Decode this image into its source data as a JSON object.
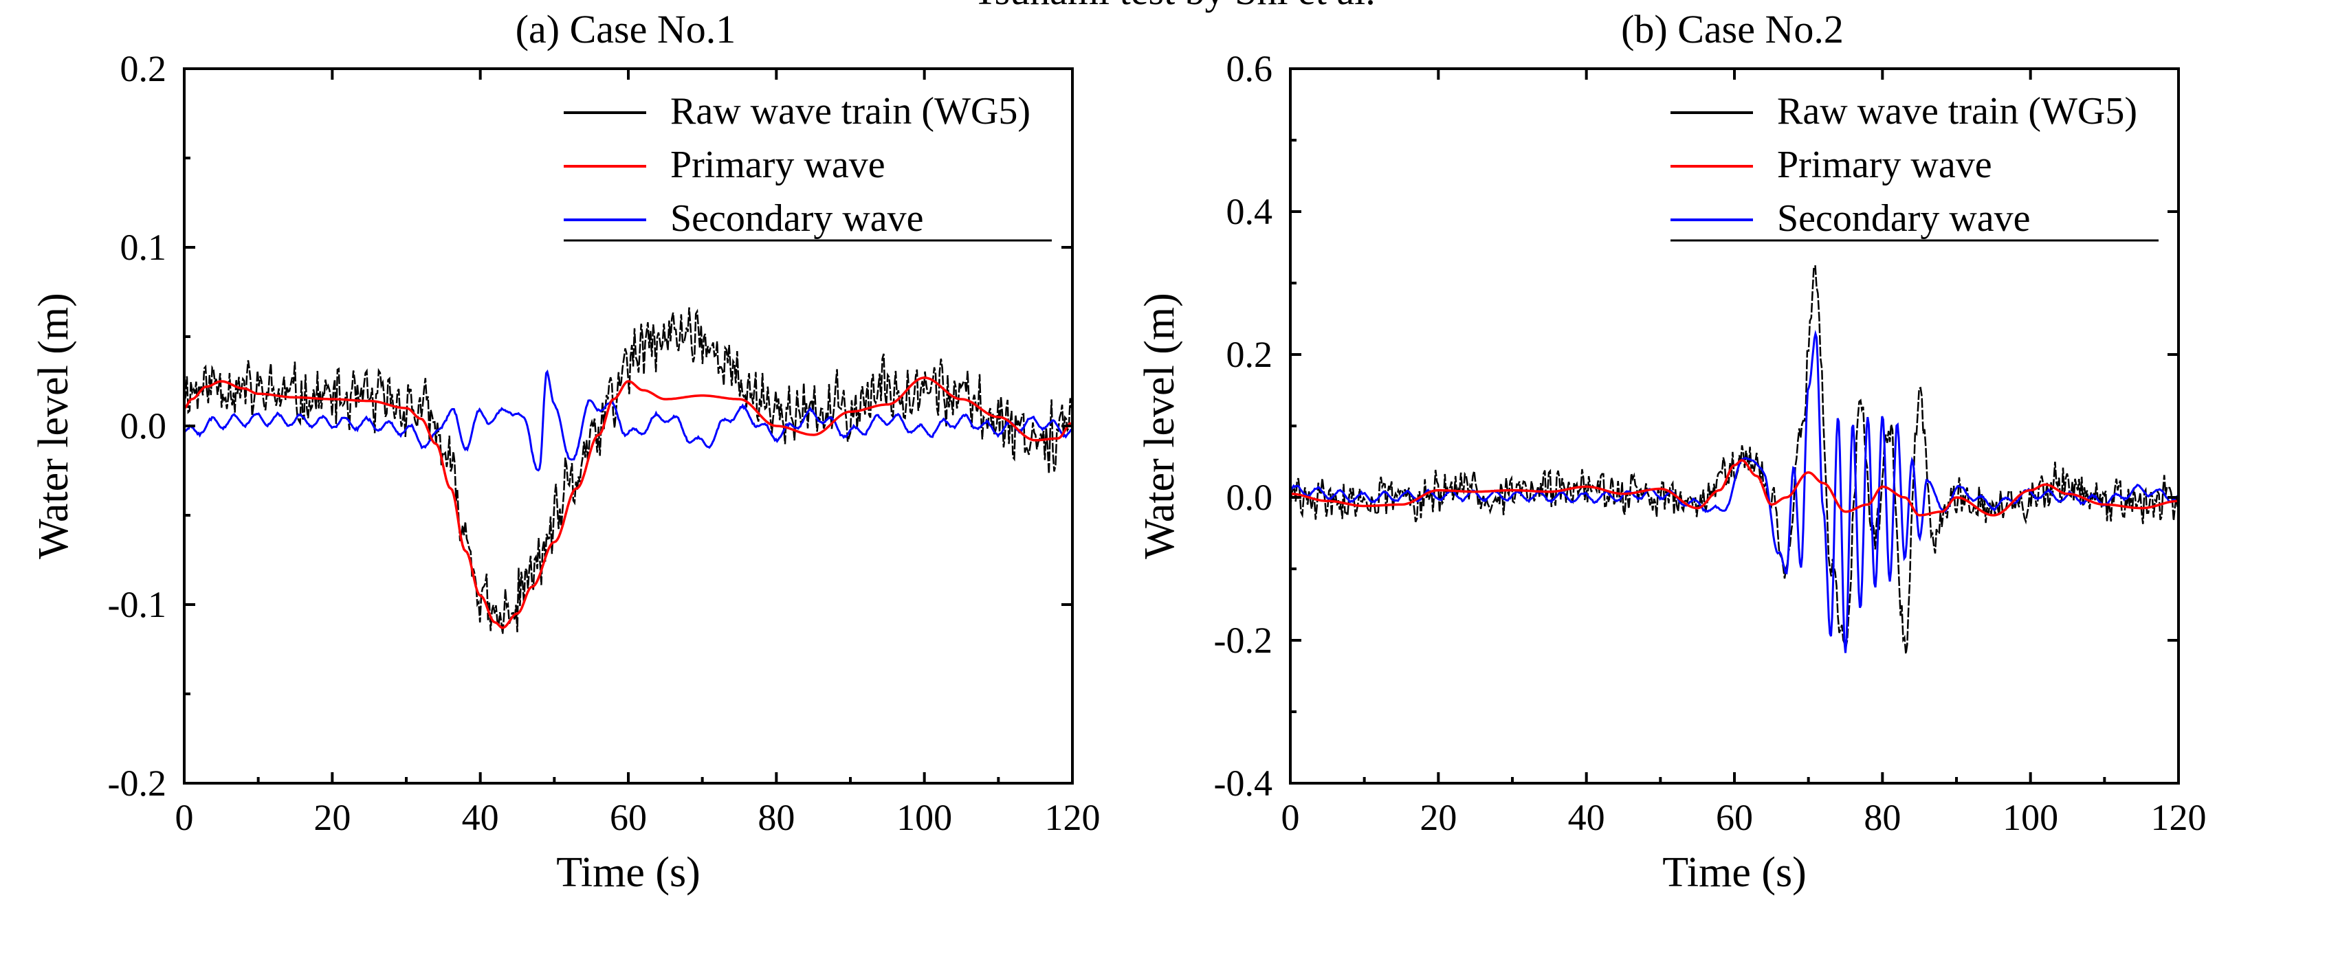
{
  "figure": {
    "top_label": "Tsunami test by Shi et al."
  },
  "chart_data": [
    {
      "type": "line",
      "title": "(a) Case No.1",
      "xlabel": "Time (s)",
      "ylabel": "Water level (m)",
      "xlim": [
        0,
        120
      ],
      "ylim": [
        -0.2,
        0.2
      ],
      "xticks": [
        0,
        20,
        40,
        60,
        80,
        100,
        120
      ],
      "yticks": [
        -0.2,
        -0.1,
        0.0,
        0.1,
        0.2
      ],
      "xtick_labels": [
        "0",
        "20",
        "40",
        "60",
        "80",
        "100",
        "120"
      ],
      "ytick_labels": [
        "-0.2",
        "-0.1",
        "0.0",
        "0.1",
        "0.2"
      ],
      "legend_position": "top-right",
      "series": [
        {
          "name": "Raw wave train (WG5)",
          "color": "#000000",
          "style": "noisy",
          "x": [
            0,
            5,
            10,
            15,
            20,
            25,
            30,
            33,
            35,
            38,
            40,
            42,
            44,
            46,
            48,
            50,
            52,
            55,
            58,
            60,
            63,
            66,
            69,
            72,
            75,
            78,
            80,
            85,
            90,
            95,
            100,
            105,
            110,
            115,
            120
          ],
          "values": [
            0.02,
            0.025,
            0.018,
            0.016,
            0.015,
            0.014,
            0.012,
            0.005,
            -0.015,
            -0.06,
            -0.095,
            -0.11,
            -0.105,
            -0.09,
            -0.075,
            -0.055,
            -0.035,
            -0.01,
            0.015,
            0.035,
            0.045,
            0.05,
            0.055,
            0.04,
            0.025,
            0.015,
            0.008,
            0.006,
            0.01,
            0.02,
            0.025,
            0.015,
            0.005,
            -0.005,
            0.0
          ],
          "noise_amplitude": 0.018
        },
        {
          "name": "Primary wave",
          "color": "#ff0000",
          "style": "smooth",
          "x": [
            0,
            1,
            3,
            5,
            8,
            10,
            15,
            20,
            25,
            30,
            32,
            34,
            36,
            38,
            40,
            42,
            43,
            45,
            47,
            50,
            53,
            56,
            58,
            60,
            62,
            65,
            70,
            75,
            80,
            85,
            90,
            95,
            100,
            105,
            110,
            115,
            118,
            120
          ],
          "values": [
            0.01,
            0.015,
            0.022,
            0.025,
            0.021,
            0.018,
            0.016,
            0.015,
            0.014,
            0.01,
            0.004,
            -0.01,
            -0.035,
            -0.07,
            -0.095,
            -0.11,
            -0.113,
            -0.105,
            -0.09,
            -0.065,
            -0.035,
            -0.005,
            0.015,
            0.025,
            0.02,
            0.015,
            0.017,
            0.015,
            0.0,
            -0.005,
            0.008,
            0.012,
            0.027,
            0.015,
            0.005,
            -0.008,
            -0.007,
            0.002
          ]
        },
        {
          "name": "Secondary wave",
          "color": "#0000ff",
          "style": "oscillating",
          "x": [
            0,
            5,
            10,
            15,
            20,
            25,
            30,
            33,
            36,
            38,
            40,
            42,
            44,
            46,
            48,
            49,
            50,
            52,
            55,
            58,
            60,
            65,
            70,
            75,
            80,
            85,
            90,
            95,
            100,
            105,
            110,
            115,
            120
          ],
          "values": [
            -0.004,
            0.002,
            0.004,
            0.003,
            0.002,
            0.001,
            -0.002,
            -0.01,
            0.008,
            -0.01,
            0.006,
            0.004,
            0.01,
            0.002,
            -0.025,
            0.028,
            0.015,
            -0.02,
            0.012,
            0.01,
            -0.005,
            0.005,
            -0.01,
            0.008,
            -0.005,
            0.006,
            -0.004,
            0.004,
            -0.003,
            0.003,
            -0.002,
            0.002,
            -0.003
          ],
          "noise_amplitude": 0.004
        }
      ]
    },
    {
      "type": "line",
      "title": "(b) Case No.2",
      "xlabel": "Time (s)",
      "ylabel": "Water level (m)",
      "xlim": [
        0,
        120
      ],
      "ylim": [
        -0.4,
        0.6
      ],
      "xticks": [
        0,
        20,
        40,
        60,
        80,
        100,
        120
      ],
      "yticks": [
        -0.4,
        -0.2,
        0.0,
        0.2,
        0.4,
        0.6
      ],
      "xtick_labels": [
        "0",
        "20",
        "40",
        "60",
        "80",
        "100",
        "120"
      ],
      "ytick_labels": [
        "-0.4",
        "-0.2",
        "0.0",
        "0.2",
        "0.4",
        "0.6"
      ],
      "legend_position": "top-right",
      "series": [
        {
          "name": "Raw wave train (WG5)",
          "color": "#000000",
          "style": "noisy",
          "x": [
            0,
            10,
            20,
            30,
            40,
            50,
            55,
            60,
            63,
            65,
            67,
            69,
            71,
            73,
            75,
            77,
            79,
            81,
            83,
            85,
            87,
            90,
            95,
            100,
            105,
            110,
            115,
            120
          ],
          "values": [
            0.0,
            -0.005,
            0.005,
            0.008,
            0.01,
            0.0,
            -0.005,
            0.04,
            0.05,
            0.0,
            -0.1,
            0.1,
            0.3,
            -0.1,
            -0.2,
            0.13,
            -0.05,
            0.1,
            -0.2,
            0.14,
            -0.05,
            0.01,
            -0.015,
            0.0,
            0.015,
            0.0,
            -0.01,
            0.0
          ],
          "noise_amplitude": 0.03
        },
        {
          "name": "Primary wave",
          "color": "#ff0000",
          "style": "smooth",
          "x": [
            0,
            5,
            10,
            15,
            20,
            25,
            30,
            35,
            40,
            45,
            50,
            55,
            58,
            60,
            61,
            63,
            65,
            67,
            70,
            72,
            75,
            78,
            80,
            83,
            85,
            88,
            90,
            95,
            100,
            102,
            105,
            110,
            115,
            120
          ],
          "values": [
            0.005,
            -0.005,
            -0.012,
            -0.01,
            0.01,
            0.008,
            0.01,
            0.008,
            0.015,
            0.005,
            0.012,
            -0.015,
            0.01,
            0.045,
            0.052,
            0.03,
            -0.01,
            0.0,
            0.035,
            0.02,
            -0.02,
            -0.01,
            0.015,
            0.0,
            -0.025,
            -0.02,
            0.0,
            -0.025,
            0.01,
            0.018,
            0.005,
            -0.01,
            -0.015,
            -0.005
          ]
        },
        {
          "name": "Secondary wave",
          "color": "#0000ff",
          "style": "oscillating",
          "x": [
            0,
            10,
            20,
            30,
            40,
            50,
            55,
            58,
            62,
            64,
            66,
            67,
            68,
            69,
            70,
            71,
            72,
            73,
            74,
            75,
            76,
            77,
            78,
            79,
            80,
            81,
            82,
            83,
            84,
            85,
            86,
            88,
            90,
            95,
            100,
            105,
            110,
            115,
            120
          ],
          "values": [
            0.01,
            0.0,
            0.003,
            0.002,
            0.0,
            0.005,
            -0.01,
            -0.02,
            0.06,
            0.03,
            -0.08,
            -0.11,
            0.05,
            -0.1,
            0.15,
            0.235,
            -0.02,
            -0.2,
            0.12,
            -0.22,
            0.1,
            -0.15,
            0.11,
            -0.13,
            0.12,
            -0.12,
            0.1,
            -0.08,
            0.05,
            -0.06,
            0.03,
            -0.02,
            0.01,
            -0.01,
            0.005,
            0.0,
            -0.005,
            0.01,
            0.0
          ],
          "noise_amplitude": 0.008
        }
      ]
    }
  ]
}
